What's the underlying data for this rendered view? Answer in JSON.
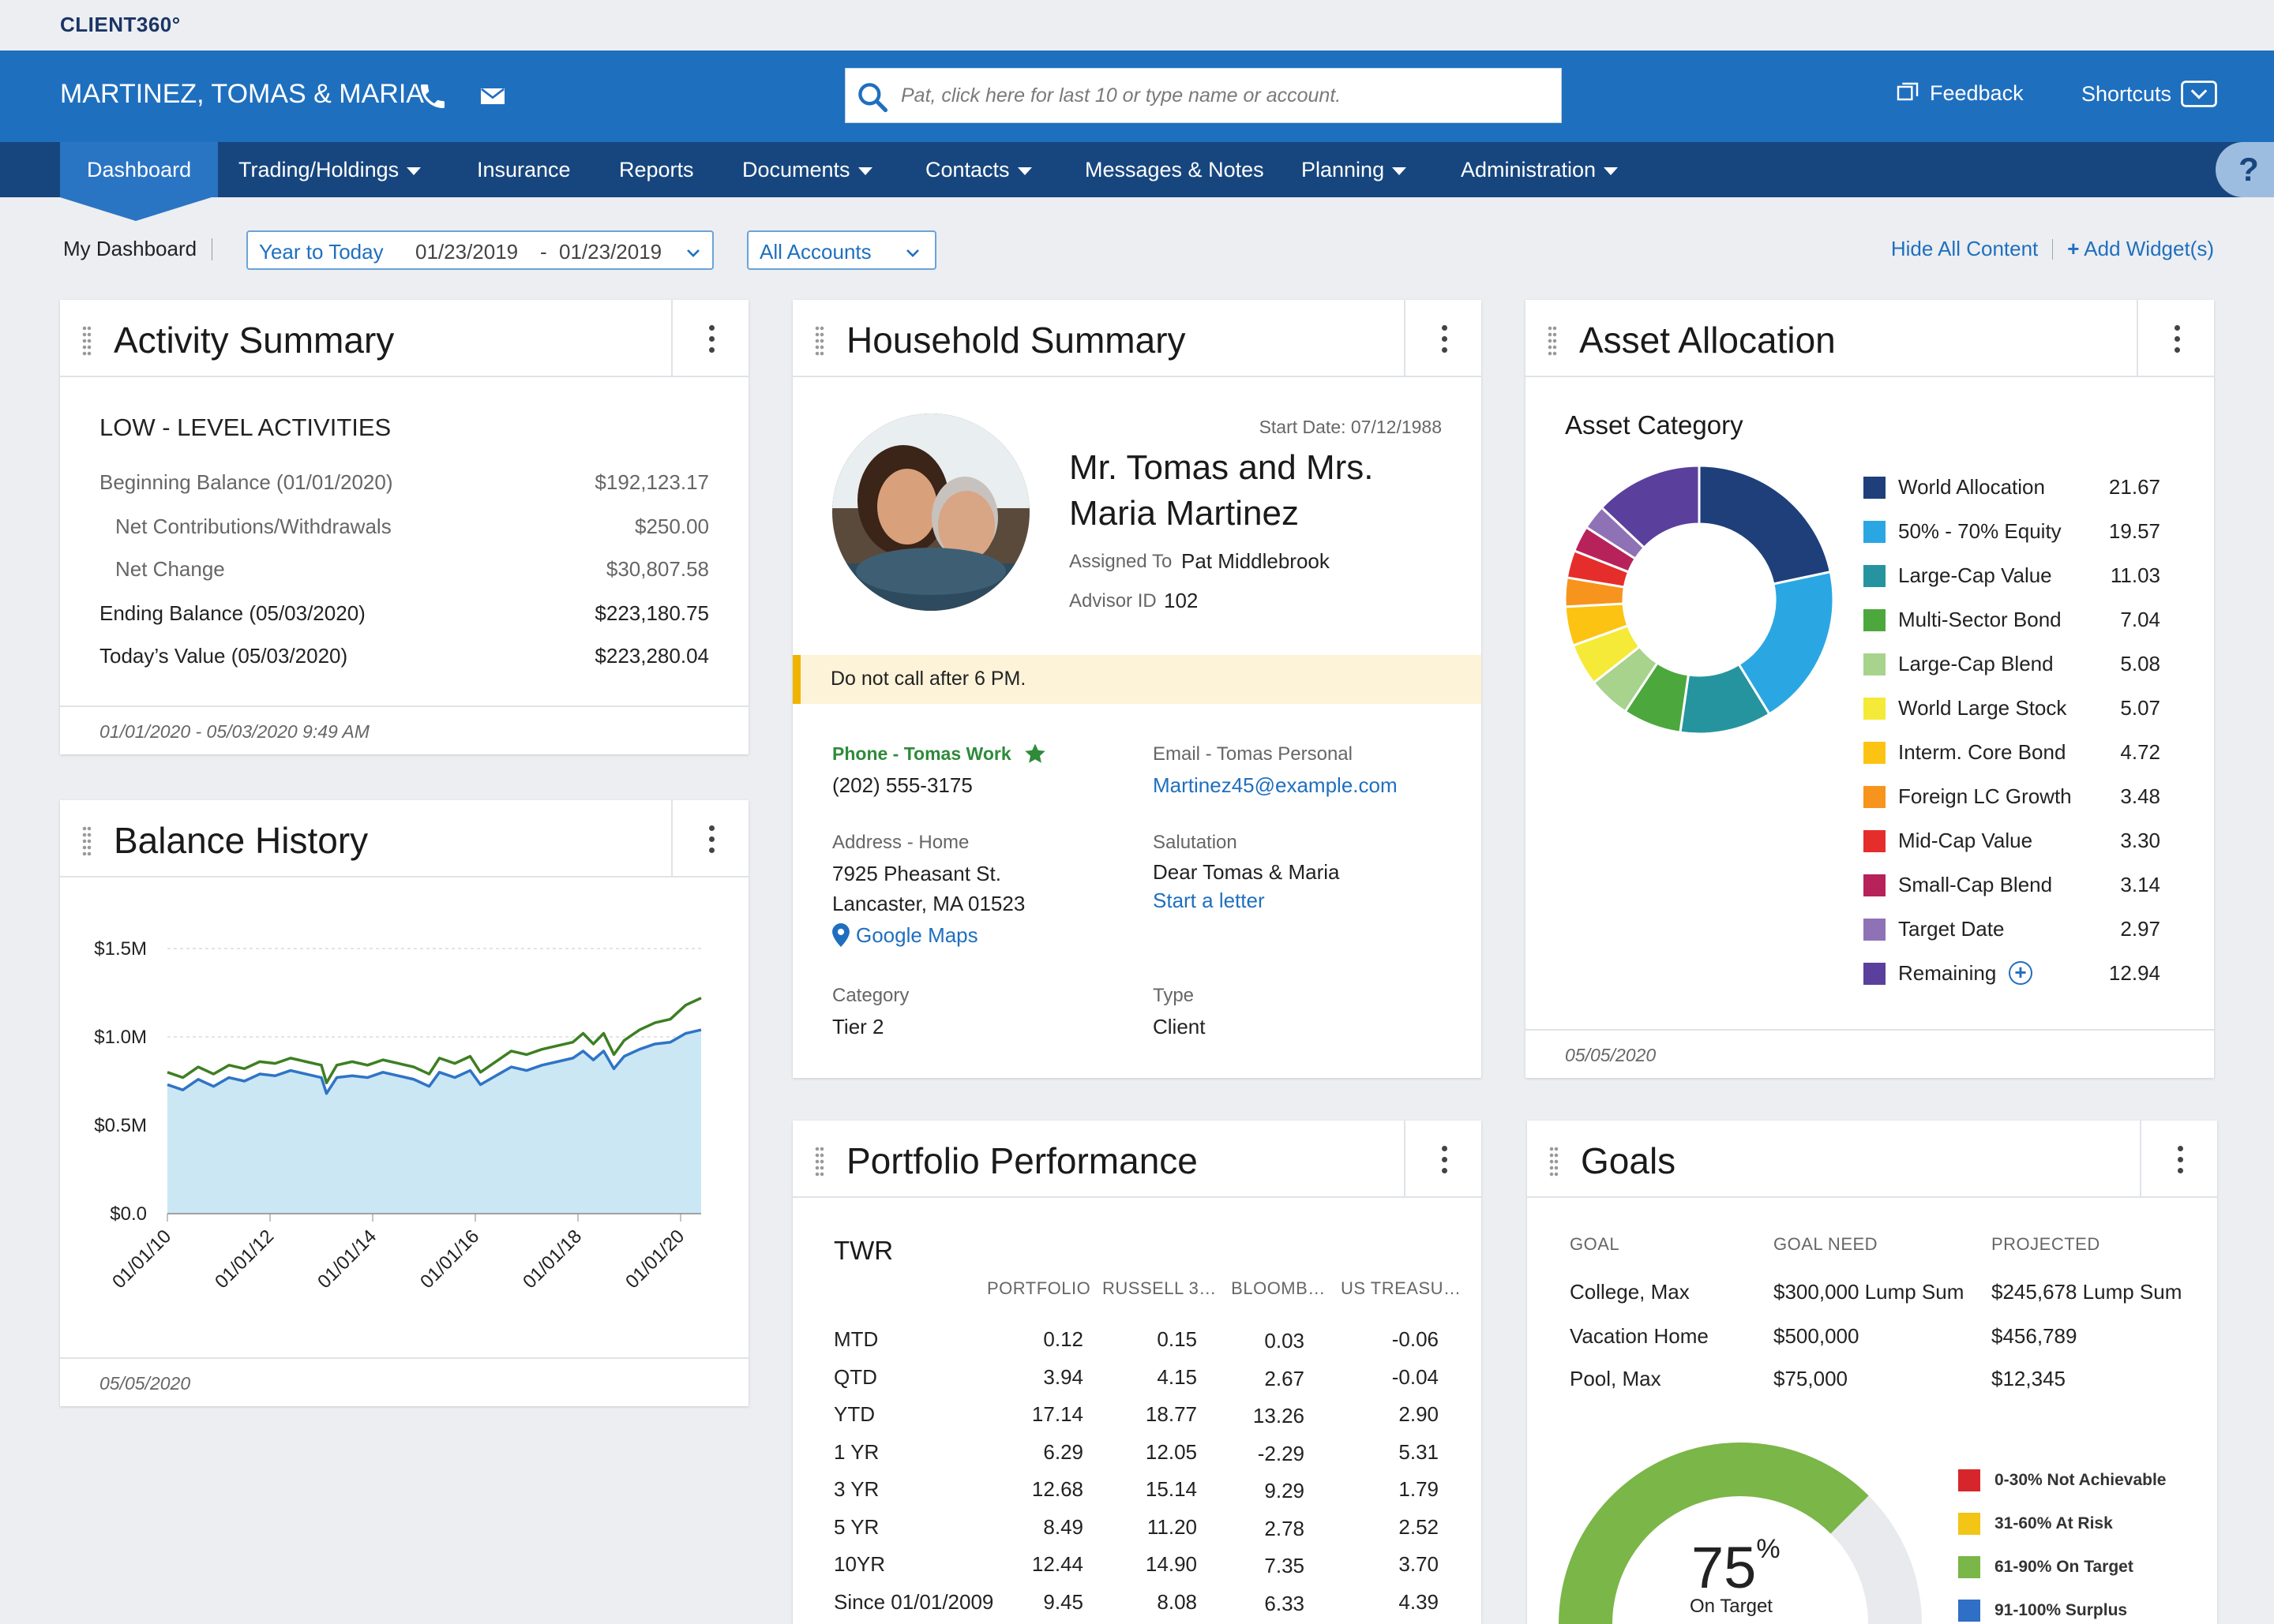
{
  "app": {
    "logo": "CLIENT360°"
  },
  "client": {
    "name": "MARTINEZ, TOMAS & MARIA"
  },
  "search": {
    "placeholder": "Pat, click here for last 10 or type name or account."
  },
  "top_actions": {
    "feedback": "Feedback",
    "shortcuts": "Shortcuts"
  },
  "nav": {
    "dashboard": "Dashboard",
    "trading": "Trading/Holdings",
    "insurance": "Insurance",
    "reports": "Reports",
    "documents": "Documents",
    "contacts": "Contacts",
    "messages": "Messages & Notes",
    "planning": "Planning",
    "administration": "Administration",
    "help": "?"
  },
  "filters": {
    "my_dashboard": "My Dashboard",
    "range_label": "Year to Today",
    "date_from": "01/23/2019",
    "date_sep": "-",
    "date_to": "01/23/2019",
    "accounts": "All Accounts",
    "hide_all": "Hide All Content",
    "add_widgets": "Add Widget(s)"
  },
  "activity": {
    "title": "Activity Summary",
    "section": "LOW - LEVEL ACTIVITIES",
    "rows": [
      {
        "label": "Beginning Balance (01/01/2020)",
        "value": "$192,123.17"
      },
      {
        "label": "Net Contributions/Withdrawals",
        "value": "$250.00"
      },
      {
        "label": "Net Change",
        "value": "$30,807.58"
      },
      {
        "label": "Ending Balance (05/03/2020)",
        "value": "$223,180.75"
      },
      {
        "label": "Today’s Value (05/03/2020)",
        "value": "$223,280.04"
      }
    ],
    "footer": "01/01/2020 - 05/03/2020 9:49 AM"
  },
  "balance": {
    "title": "Balance History",
    "footer": "05/05/2020"
  },
  "household": {
    "title": "Household Summary",
    "start_date": "Start Date: 07/12/1988",
    "name_line1": "Mr. Tomas and Mrs.",
    "name_line2": "Maria Martinez",
    "assigned_label": "Assigned To",
    "assigned_value": "Pat Middlebrook",
    "advisor_label": "Advisor ID",
    "advisor_value": "102",
    "alert": "Do not call after 6 PM.",
    "phone_label": "Phone - Tomas Work",
    "phone_value": "(202) 555-3175",
    "email_label": "Email - Tomas Personal",
    "email_value": "Martinez45@example.com",
    "address_label": "Address - Home",
    "address_line1": "7925 Pheasant St.",
    "address_line2": "Lancaster, MA 01523",
    "maps_link": "Google Maps",
    "salutation_label": "Salutation",
    "salutation_value": "Dear Tomas & Maria",
    "letter_link": "Start a letter",
    "category_label": "Category",
    "category_value": "Tier 2",
    "type_label": "Type",
    "type_value": "Client",
    "colors": {
      "alert_bg": "#fdf3d8",
      "alert_bar": "#f0b400",
      "star": "#2e8b3a"
    }
  },
  "allocation": {
    "title": "Asset Allocation",
    "subtitle": "Asset Category",
    "footer": "05/05/2020"
  },
  "performance": {
    "title": "Portfolio Performance",
    "subtitle": "TWR",
    "columns": [
      "PORTFOLIO",
      "RUSSELL 3…",
      "BLOOMB…",
      "US TREASU…"
    ],
    "rows": [
      {
        "label": "MTD",
        "values": [
          "0.12",
          "0.15",
          "0.03",
          "-0.06"
        ]
      },
      {
        "label": "QTD",
        "values": [
          "3.94",
          "4.15",
          "2.67",
          "-0.04"
        ]
      },
      {
        "label": "YTD",
        "values": [
          "17.14",
          "18.77",
          "13.26",
          "2.90"
        ]
      },
      {
        "label": "1 YR",
        "values": [
          "6.29",
          "12.05",
          "-2.29",
          "5.31"
        ]
      },
      {
        "label": "3 YR",
        "values": [
          "12.68",
          "15.14",
          "9.29",
          "1.79"
        ]
      },
      {
        "label": "5 YR",
        "values": [
          "8.49",
          "11.20",
          "2.78",
          "2.52"
        ]
      },
      {
        "label": "10YR",
        "values": [
          "12.44",
          "14.90",
          "7.35",
          "3.70"
        ]
      },
      {
        "label": "Since 01/01/2009",
        "values": [
          "9.45",
          "8.08",
          "6.33",
          "4.39"
        ]
      }
    ]
  },
  "goals": {
    "title": "Goals",
    "headers": [
      "GOAL",
      "GOAL NEED",
      "PROJECTED"
    ],
    "rows": [
      {
        "goal": "College, Max",
        "need": "$300,000 Lump Sum",
        "projected": "$245,678 Lump Sum"
      },
      {
        "goal": "Vacation Home",
        "need": "$500,000",
        "projected": "$456,789"
      },
      {
        "goal": "Pool, Max",
        "need": "$75,000",
        "projected": "$12,345"
      }
    ],
    "gauge_value": "75",
    "gauge_unit": "%",
    "gauge_label": "On Target",
    "gauge_fraction": 0.75,
    "legend": [
      {
        "label": "0-30% Not Achievable",
        "color": "#d7262b"
      },
      {
        "label": "31-60% At Risk",
        "color": "#f2c516"
      },
      {
        "label": "61-90% On Target",
        "color": "#7ab648"
      },
      {
        "label": "91-100% Surplus",
        "color": "#2f6fc6"
      }
    ]
  },
  "chart_data": [
    {
      "type": "area",
      "y_tick_labels": [
        "$0.0",
        "$0.5M",
        "$1.0M",
        "$1.5M"
      ],
      "x_tick_labels": [
        "01/01/10",
        "01/01/12",
        "01/01/14",
        "01/01/16",
        "01/01/18",
        "01/01/20"
      ],
      "ylim": [
        0,
        1.5
      ],
      "y_unit": "$M",
      "x_range": [
        2010.0,
        2020.4
      ],
      "grid": true,
      "reference_line": 1.0,
      "series": [
        {
          "color": "#3d7f23",
          "points": [
            [
              2010.0,
              0.8
            ],
            [
              2010.3,
              0.77
            ],
            [
              2010.6,
              0.83
            ],
            [
              2010.9,
              0.79
            ],
            [
              2011.2,
              0.84
            ],
            [
              2011.5,
              0.82
            ],
            [
              2011.8,
              0.86
            ],
            [
              2012.1,
              0.85
            ],
            [
              2012.4,
              0.88
            ],
            [
              2012.7,
              0.86
            ],
            [
              2013.0,
              0.84
            ],
            [
              2013.1,
              0.74
            ],
            [
              2013.3,
              0.84
            ],
            [
              2013.6,
              0.86
            ],
            [
              2013.9,
              0.84
            ],
            [
              2014.2,
              0.87
            ],
            [
              2014.5,
              0.85
            ],
            [
              2014.8,
              0.83
            ],
            [
              2015.1,
              0.79
            ],
            [
              2015.3,
              0.88
            ],
            [
              2015.6,
              0.85
            ],
            [
              2015.9,
              0.89
            ],
            [
              2016.1,
              0.8
            ],
            [
              2016.4,
              0.86
            ],
            [
              2016.7,
              0.92
            ],
            [
              2017.0,
              0.9
            ],
            [
              2017.3,
              0.93
            ],
            [
              2017.6,
              0.95
            ],
            [
              2017.9,
              0.97
            ],
            [
              2018.1,
              1.02
            ],
            [
              2018.3,
              0.96
            ],
            [
              2018.5,
              1.02
            ],
            [
              2018.7,
              0.9
            ],
            [
              2018.9,
              0.98
            ],
            [
              2019.2,
              1.04
            ],
            [
              2019.5,
              1.08
            ],
            [
              2019.8,
              1.1
            ],
            [
              2020.1,
              1.18
            ],
            [
              2020.4,
              1.22
            ]
          ]
        },
        {
          "color": "#2f74c6",
          "points": [
            [
              2010.0,
              0.73
            ],
            [
              2010.3,
              0.7
            ],
            [
              2010.6,
              0.76
            ],
            [
              2010.9,
              0.72
            ],
            [
              2011.2,
              0.77
            ],
            [
              2011.5,
              0.75
            ],
            [
              2011.8,
              0.79
            ],
            [
              2012.1,
              0.78
            ],
            [
              2012.4,
              0.81
            ],
            [
              2012.7,
              0.79
            ],
            [
              2013.0,
              0.77
            ],
            [
              2013.1,
              0.68
            ],
            [
              2013.3,
              0.77
            ],
            [
              2013.6,
              0.78
            ],
            [
              2013.9,
              0.77
            ],
            [
              2014.2,
              0.8
            ],
            [
              2014.5,
              0.78
            ],
            [
              2014.8,
              0.76
            ],
            [
              2015.1,
              0.72
            ],
            [
              2015.3,
              0.8
            ],
            [
              2015.6,
              0.77
            ],
            [
              2015.9,
              0.81
            ],
            [
              2016.1,
              0.73
            ],
            [
              2016.4,
              0.78
            ],
            [
              2016.7,
              0.83
            ],
            [
              2017.0,
              0.81
            ],
            [
              2017.3,
              0.84
            ],
            [
              2017.6,
              0.86
            ],
            [
              2017.9,
              0.88
            ],
            [
              2018.1,
              0.92
            ],
            [
              2018.3,
              0.87
            ],
            [
              2018.5,
              0.92
            ],
            [
              2018.7,
              0.82
            ],
            [
              2018.9,
              0.89
            ],
            [
              2019.2,
              0.93
            ],
            [
              2019.5,
              0.96
            ],
            [
              2019.8,
              0.97
            ],
            [
              2020.1,
              1.02
            ],
            [
              2020.4,
              1.04
            ]
          ]
        }
      ]
    },
    {
      "type": "pie",
      "donut": true,
      "legend_position": "right",
      "slices": [
        {
          "label": "World Allocation",
          "value": 21.67,
          "color": "#1e3f7a"
        },
        {
          "label": "50% - 70% Equity",
          "value": 19.57,
          "color": "#2aa7e3"
        },
        {
          "label": "Large-Cap Value",
          "value": 11.03,
          "color": "#26949e"
        },
        {
          "label": "Multi-Sector Bond",
          "value": 7.04,
          "color": "#4ca83d"
        },
        {
          "label": "Large-Cap Blend",
          "value": 5.08,
          "color": "#a7d38c"
        },
        {
          "label": "World Large Stock",
          "value": 5.07,
          "color": "#f4ea37"
        },
        {
          "label": "Interm. Core Bond",
          "value": 4.72,
          "color": "#fcc313"
        },
        {
          "label": "Foreign LC Growth",
          "value": 3.48,
          "color": "#f7941d"
        },
        {
          "label": "Mid-Cap Value",
          "value": 3.3,
          "color": "#e52e2b"
        },
        {
          "label": "Small-Cap Blend",
          "value": 3.14,
          "color": "#b7225a"
        },
        {
          "label": "Target Date",
          "value": 2.97,
          "color": "#8f72b6"
        },
        {
          "label": "Remaining",
          "value": 12.94,
          "color": "#5b3f9c"
        }
      ]
    }
  ]
}
